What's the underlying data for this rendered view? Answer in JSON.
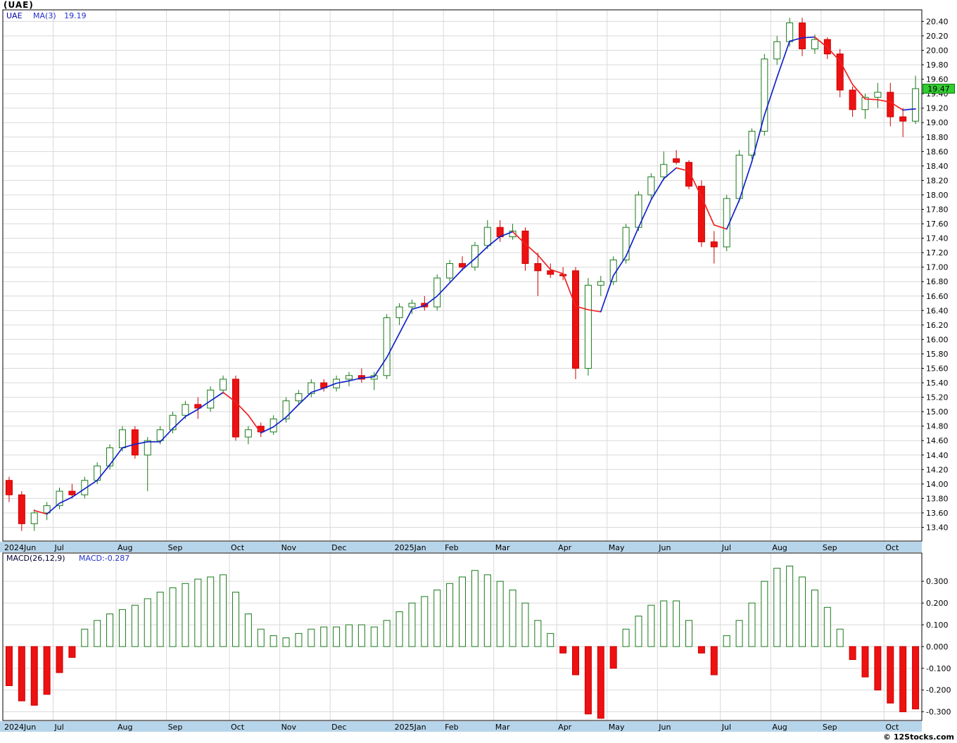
{
  "window": {
    "title": "(UAE)"
  },
  "price_panel": {
    "legend": {
      "symbol": "UAE",
      "ma_label": "MA(3)",
      "ma_value": "19.19"
    },
    "last_price_badge": "19.47"
  },
  "macd_panel": {
    "legend": {
      "label": "MACD(26,12,9)",
      "value": "MACD:-0.287"
    }
  },
  "footer": {
    "copyright": "© 12Stocks.com"
  },
  "colors": {
    "up": "#1a7a1a",
    "up_fill": "#ffffff",
    "down": "#cc0000",
    "down_fill": "#ee1111",
    "ma_up": "#1122cc",
    "ma_down": "#ee2222",
    "grid": "#d9d9d9",
    "border": "#000000",
    "strip": "#b7d5ea",
    "badge_bg": "#33cc33",
    "axis_text": "#000000"
  },
  "chart_data": [
    {
      "type": "candlestick",
      "title": "(UAE)",
      "legend": {
        "symbol": "UAE",
        "ma_label": "MA(3)",
        "ma_value": 19.19
      },
      "ma_period": 3,
      "last_price": 19.47,
      "ylim": [
        13.21,
        20.56
      ],
      "yticks": [
        20.4,
        20.2,
        20.0,
        19.8,
        19.6,
        19.4,
        19.2,
        19.0,
        18.8,
        18.6,
        18.4,
        18.2,
        18.0,
        17.8,
        17.6,
        17.4,
        17.2,
        17.0,
        16.8,
        16.6,
        16.4,
        16.2,
        16.0,
        15.8,
        15.6,
        15.4,
        15.2,
        15.0,
        14.8,
        14.6,
        14.4,
        14.2,
        14.0,
        13.8,
        13.6,
        13.4
      ],
      "x_labels": [
        {
          "label": "2024Jun",
          "i": 0
        },
        {
          "label": "Jul",
          "i": 4
        },
        {
          "label": "Aug",
          "i": 9
        },
        {
          "label": "Sep",
          "i": 13
        },
        {
          "label": "Oct",
          "i": 18
        },
        {
          "label": "Nov",
          "i": 22
        },
        {
          "label": "Dec",
          "i": 26
        },
        {
          "label": "2025Jan",
          "i": 31
        },
        {
          "label": "Feb",
          "i": 35
        },
        {
          "label": "Mar",
          "i": 39
        },
        {
          "label": "Apr",
          "i": 44
        },
        {
          "label": "May",
          "i": 48
        },
        {
          "label": "Jun",
          "i": 52
        },
        {
          "label": "Jul",
          "i": 57
        },
        {
          "label": "Aug",
          "i": 61
        },
        {
          "label": "Sep",
          "i": 65
        },
        {
          "label": "Oct",
          "i": 70
        }
      ],
      "candles": [
        [
          14.05,
          14.1,
          13.75,
          13.85
        ],
        [
          13.85,
          13.9,
          13.35,
          13.45
        ],
        [
          13.45,
          13.65,
          13.35,
          13.6
        ],
        [
          13.6,
          13.75,
          13.5,
          13.7
        ],
        [
          13.7,
          13.95,
          13.65,
          13.9
        ],
        [
          13.9,
          14.0,
          13.8,
          13.85
        ],
        [
          13.85,
          14.1,
          13.8,
          14.05
        ],
        [
          14.05,
          14.3,
          14.0,
          14.25
        ],
        [
          14.25,
          14.55,
          14.2,
          14.5
        ],
        [
          14.5,
          14.8,
          14.45,
          14.75
        ],
        [
          14.75,
          14.8,
          14.35,
          14.4
        ],
        [
          14.4,
          14.65,
          13.9,
          14.6
        ],
        [
          14.6,
          14.8,
          14.55,
          14.75
        ],
        [
          14.75,
          15.0,
          14.7,
          14.95
        ],
        [
          14.95,
          15.15,
          14.9,
          15.1
        ],
        [
          15.1,
          15.2,
          14.9,
          15.05
        ],
        [
          15.05,
          15.35,
          15.0,
          15.3
        ],
        [
          15.3,
          15.5,
          15.25,
          15.45
        ],
        [
          15.45,
          15.5,
          14.6,
          14.65
        ],
        [
          14.65,
          14.8,
          14.55,
          14.75
        ],
        [
          14.8,
          14.85,
          14.65,
          14.72
        ],
        [
          14.72,
          14.95,
          14.68,
          14.9
        ],
        [
          14.9,
          15.2,
          14.85,
          15.15
        ],
        [
          15.15,
          15.3,
          15.1,
          15.25
        ],
        [
          15.25,
          15.45,
          15.2,
          15.4
        ],
        [
          15.4,
          15.45,
          15.28,
          15.33
        ],
        [
          15.33,
          15.5,
          15.28,
          15.45
        ],
        [
          15.45,
          15.55,
          15.35,
          15.5
        ],
        [
          15.5,
          15.6,
          15.4,
          15.45
        ],
        [
          15.45,
          15.55,
          15.3,
          15.5
        ],
        [
          15.5,
          16.35,
          15.45,
          16.3
        ],
        [
          16.3,
          16.5,
          16.2,
          16.45
        ],
        [
          16.45,
          16.55,
          16.35,
          16.5
        ],
        [
          16.5,
          16.6,
          16.4,
          16.45
        ],
        [
          16.45,
          16.9,
          16.4,
          16.85
        ],
        [
          16.85,
          17.1,
          16.8,
          17.05
        ],
        [
          17.05,
          17.15,
          16.95,
          17.0
        ],
        [
          17.0,
          17.35,
          16.95,
          17.3
        ],
        [
          17.3,
          17.65,
          17.25,
          17.55
        ],
        [
          17.55,
          17.65,
          17.35,
          17.42
        ],
        [
          17.42,
          17.6,
          17.38,
          17.5
        ],
        [
          17.5,
          17.55,
          16.95,
          17.05
        ],
        [
          17.05,
          17.2,
          16.6,
          16.95
        ],
        [
          16.95,
          17.05,
          16.85,
          16.9
        ],
        [
          16.9,
          17.0,
          16.82,
          16.88
        ],
        [
          16.95,
          17.0,
          15.45,
          15.6
        ],
        [
          15.6,
          16.85,
          15.5,
          16.75
        ],
        [
          16.75,
          16.88,
          16.6,
          16.8
        ],
        [
          16.8,
          17.15,
          16.75,
          17.1
        ],
        [
          17.1,
          17.6,
          17.05,
          17.55
        ],
        [
          17.55,
          18.05,
          17.5,
          18.0
        ],
        [
          18.0,
          18.3,
          17.95,
          18.25
        ],
        [
          18.25,
          18.6,
          18.2,
          18.42
        ],
        [
          18.5,
          18.62,
          18.42,
          18.45
        ],
        [
          18.45,
          18.48,
          18.08,
          18.12
        ],
        [
          18.12,
          18.2,
          17.28,
          17.35
        ],
        [
          17.35,
          17.5,
          17.05,
          17.28
        ],
        [
          17.28,
          18.0,
          17.22,
          17.95
        ],
        [
          17.95,
          18.62,
          17.9,
          18.55
        ],
        [
          18.55,
          18.92,
          18.5,
          18.88
        ],
        [
          18.88,
          19.95,
          18.82,
          19.88
        ],
        [
          19.88,
          20.2,
          19.8,
          20.12
        ],
        [
          20.12,
          20.45,
          20.05,
          20.38
        ],
        [
          20.38,
          20.45,
          19.92,
          20.02
        ],
        [
          20.02,
          20.22,
          19.95,
          20.15
        ],
        [
          20.15,
          20.18,
          19.88,
          19.95
        ],
        [
          19.95,
          20.02,
          19.35,
          19.45
        ],
        [
          19.45,
          19.5,
          19.08,
          19.18
        ],
        [
          19.18,
          19.4,
          19.05,
          19.35
        ],
        [
          19.35,
          19.55,
          19.2,
          19.42
        ],
        [
          19.42,
          19.55,
          18.95,
          19.08
        ],
        [
          19.08,
          19.2,
          18.8,
          19.02
        ],
        [
          19.02,
          19.65,
          18.98,
          19.47
        ]
      ]
    },
    {
      "type": "bar",
      "title": "MACD(26,12,9)",
      "current": -0.287,
      "ylim": [
        -0.34,
        0.43
      ],
      "yticks": [
        0.3,
        0.2,
        0.1,
        0.0,
        -0.1,
        -0.2,
        -0.3
      ],
      "values": [
        -0.18,
        -0.25,
        -0.27,
        -0.22,
        -0.12,
        -0.05,
        0.08,
        0.12,
        0.15,
        0.17,
        0.19,
        0.22,
        0.25,
        0.27,
        0.29,
        0.31,
        0.32,
        0.33,
        0.25,
        0.15,
        0.08,
        0.05,
        0.04,
        0.06,
        0.08,
        0.09,
        0.09,
        0.1,
        0.1,
        0.09,
        0.12,
        0.16,
        0.2,
        0.23,
        0.26,
        0.29,
        0.32,
        0.35,
        0.33,
        0.3,
        0.26,
        0.2,
        0.12,
        0.06,
        -0.03,
        -0.13,
        -0.31,
        -0.33,
        -0.1,
        0.08,
        0.14,
        0.19,
        0.21,
        0.21,
        0.12,
        -0.03,
        -0.13,
        0.05,
        0.12,
        0.2,
        0.3,
        0.36,
        0.37,
        0.32,
        0.26,
        0.18,
        0.08,
        -0.06,
        -0.14,
        -0.2,
        -0.26,
        -0.3,
        -0.287
      ]
    }
  ]
}
